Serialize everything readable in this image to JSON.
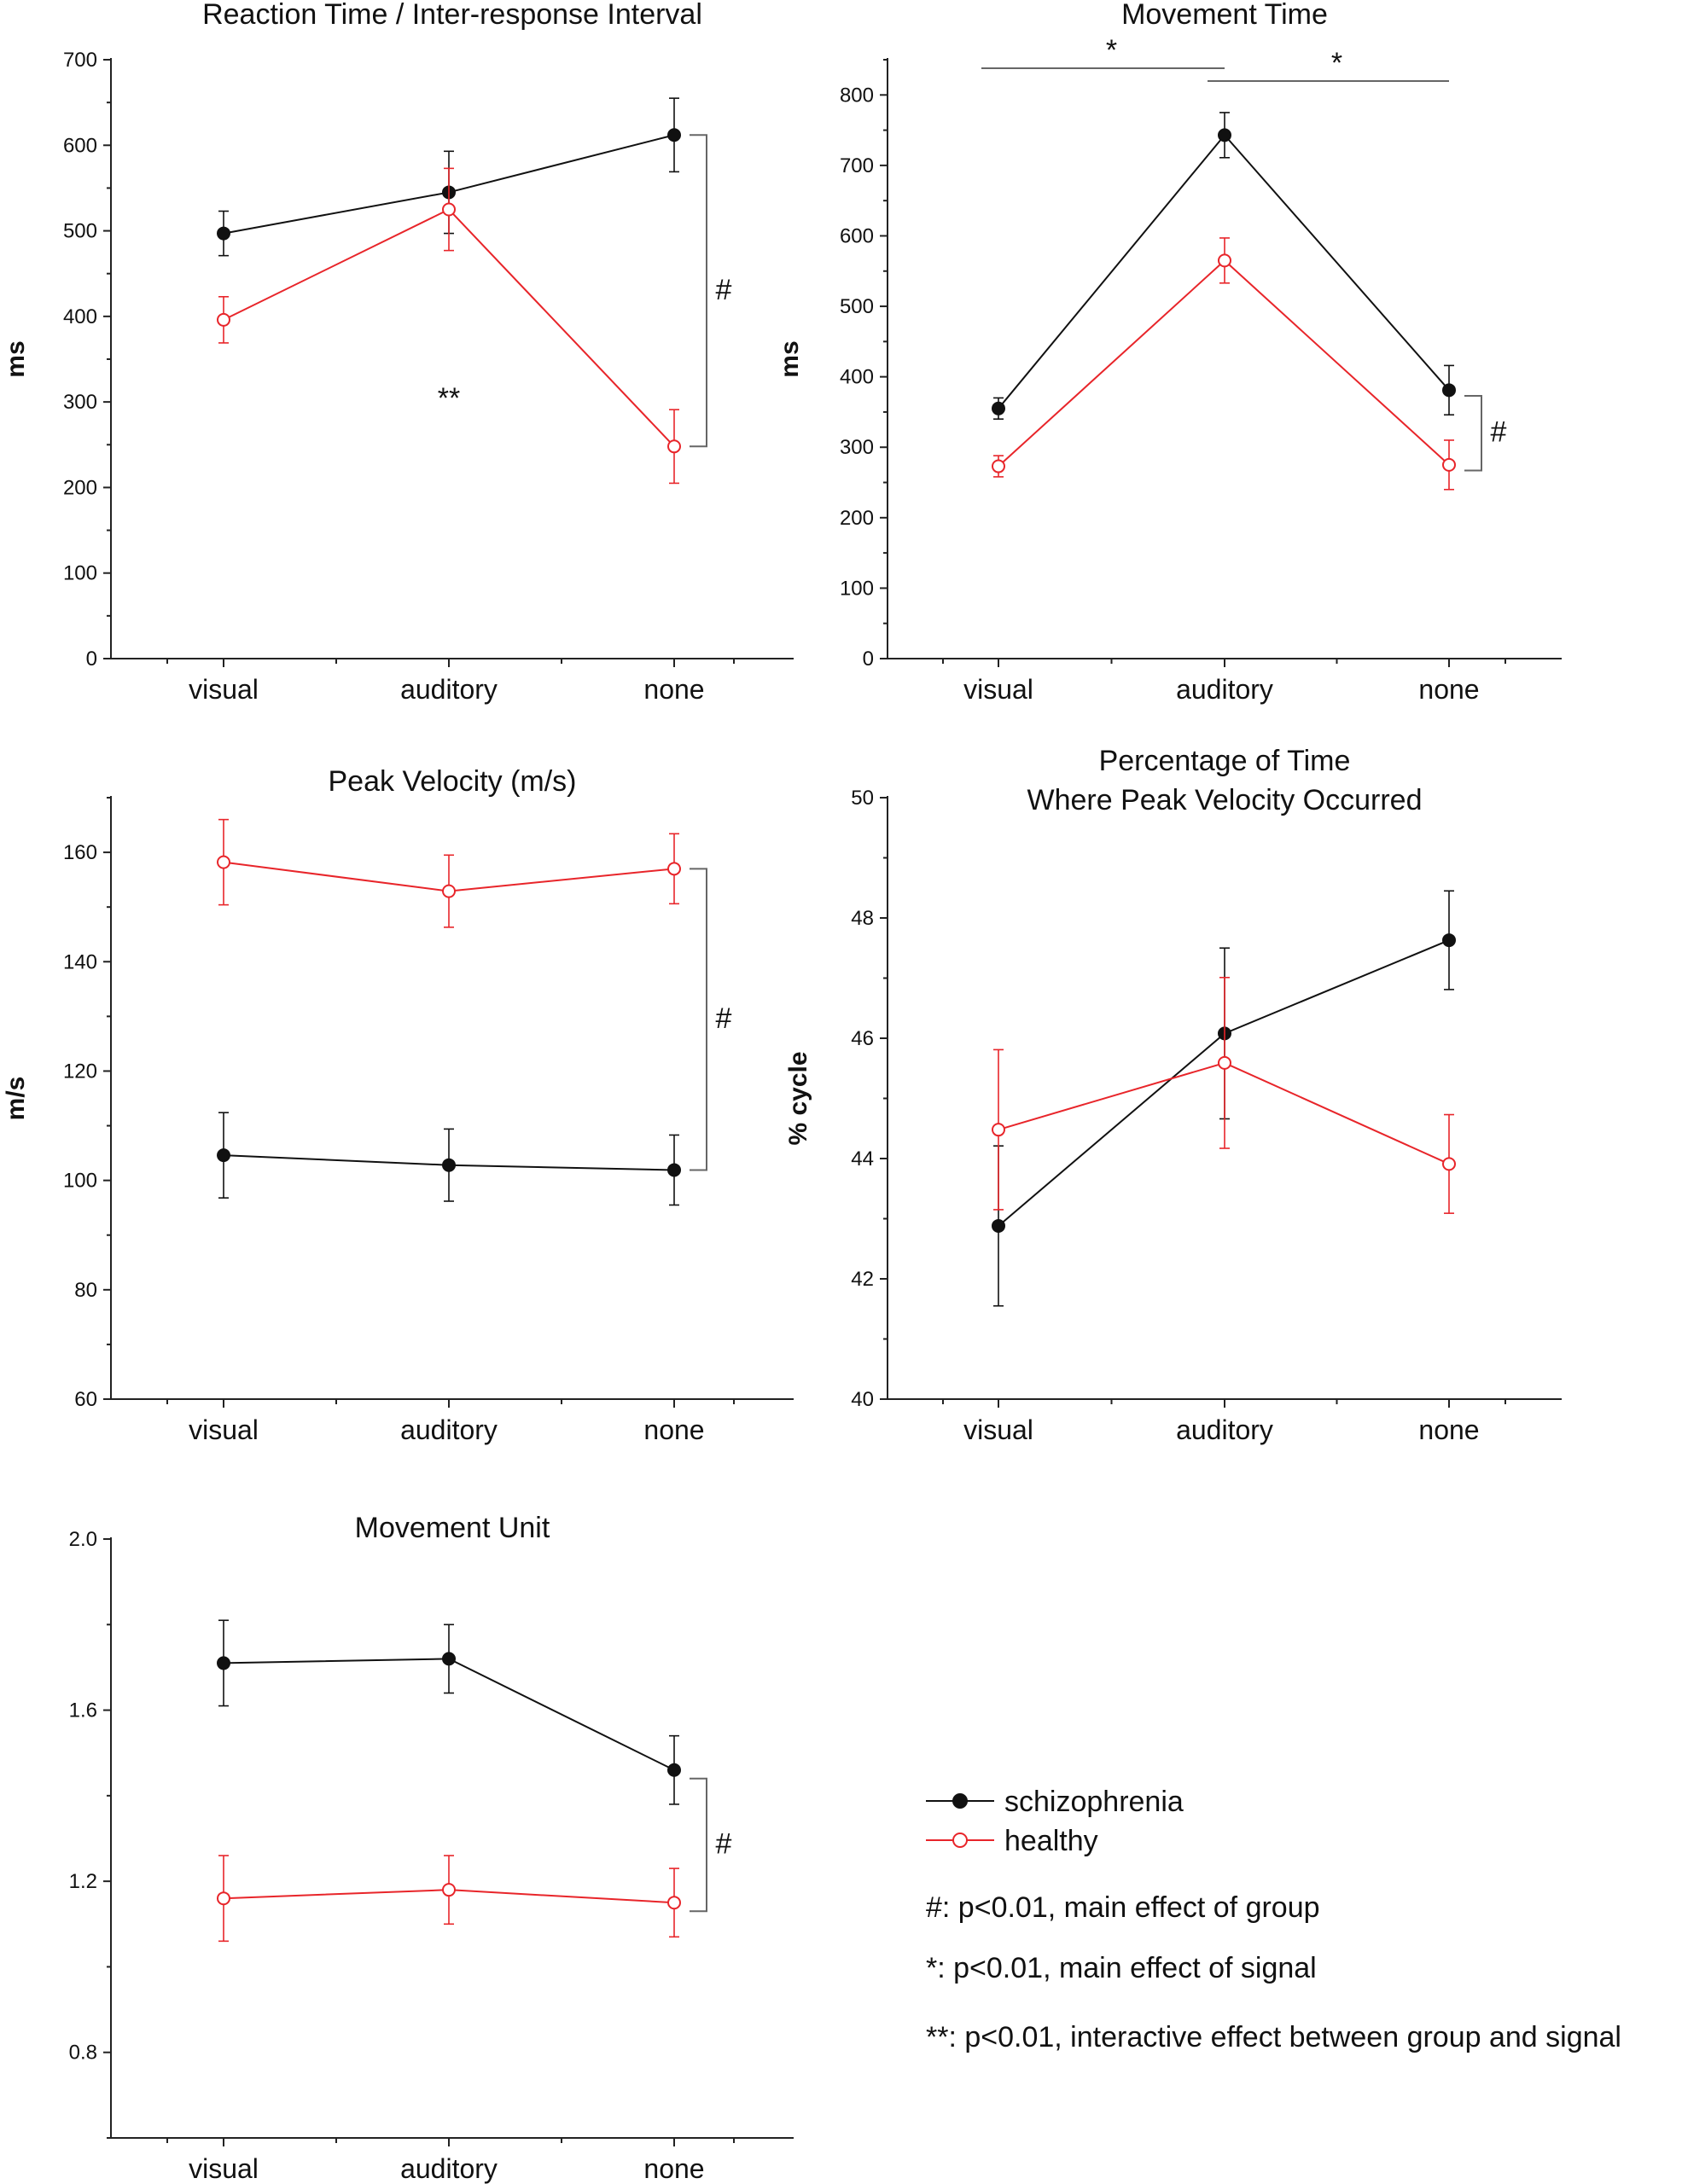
{
  "chart_data": [
    {
      "id": "rt",
      "type": "line",
      "title": "Reaction Time / Inter-response Interval",
      "title_lines": [
        "Reaction Time / Inter-response Interval"
      ],
      "ylabel": "ms",
      "categories": [
        "visual",
        "auditory",
        "none"
      ],
      "ylim": [
        0,
        700
      ],
      "yticks": [
        0,
        100,
        200,
        300,
        400,
        500,
        600,
        700
      ],
      "series": [
        {
          "name": "schizophrenia",
          "values": [
            497,
            545,
            612
          ],
          "err": [
            26,
            48,
            43
          ]
        },
        {
          "name": "healthy",
          "values": [
            396,
            525,
            248
          ],
          "err": [
            27,
            48,
            43
          ]
        }
      ],
      "annotations": [
        {
          "text": "#",
          "kind": "group-bracket",
          "range": [
            248,
            612
          ]
        },
        {
          "text": "**",
          "kind": "label",
          "x_index": 1,
          "y": 305
        }
      ]
    },
    {
      "id": "mt",
      "type": "line",
      "title": "Movement Time",
      "title_lines": [
        "Movement Time"
      ],
      "ylabel": "ms",
      "categories": [
        "visual",
        "auditory",
        "none"
      ],
      "ylim": [
        0,
        850
      ],
      "yticks": [
        0,
        100,
        200,
        300,
        400,
        500,
        600,
        700,
        800
      ],
      "series": [
        {
          "name": "schizophrenia",
          "values": [
            355,
            743,
            381
          ],
          "err": [
            15,
            32,
            35
          ]
        },
        {
          "name": "healthy",
          "values": [
            273,
            565,
            275
          ],
          "err": [
            15,
            32,
            35
          ]
        }
      ],
      "annotations": [
        {
          "text": "#",
          "kind": "group-bracket",
          "range": [
            267,
            373
          ]
        },
        {
          "text": "*",
          "kind": "signal-bracket",
          "from": 0,
          "to": 1
        },
        {
          "text": "*",
          "kind": "signal-bracket",
          "from": 1,
          "to": 2
        }
      ]
    },
    {
      "id": "pv",
      "type": "line",
      "title": "Peak Velocity (m/s)",
      "title_lines": [
        "Peak Velocity (m/s)"
      ],
      "ylabel": "m/s",
      "categories": [
        "visual",
        "auditory",
        "none"
      ],
      "ylim": [
        60,
        170
      ],
      "yticks": [
        60,
        80,
        100,
        120,
        140,
        160
      ],
      "series": [
        {
          "name": "schizophrenia",
          "values": [
            104.6,
            102.8,
            101.9
          ],
          "err": [
            7.8,
            6.6,
            6.4
          ]
        },
        {
          "name": "healthy",
          "values": [
            158.2,
            152.9,
            157.0
          ],
          "err": [
            7.8,
            6.6,
            6.4
          ]
        }
      ],
      "annotations": [
        {
          "text": "#",
          "kind": "group-bracket",
          "range": [
            101.9,
            157.0
          ]
        }
      ]
    },
    {
      "id": "pct",
      "type": "line",
      "title": "Percentage of Time Where Peak Velocity Occurred",
      "title_lines": [
        "Percentage of Time",
        "Where Peak Velocity Occurred"
      ],
      "ylabel": "% cycle",
      "categories": [
        "visual",
        "auditory",
        "none"
      ],
      "ylim": [
        40,
        50
      ],
      "yticks": [
        40,
        42,
        44,
        46,
        48,
        50
      ],
      "series": [
        {
          "name": "schizophrenia",
          "values": [
            42.88,
            46.08,
            47.63
          ],
          "err": [
            1.33,
            1.42,
            0.82
          ]
        },
        {
          "name": "healthy",
          "values": [
            44.48,
            45.59,
            43.91
          ],
          "err": [
            1.33,
            1.42,
            0.82
          ]
        }
      ],
      "annotations": []
    },
    {
      "id": "mu",
      "type": "line",
      "title": "Movement Unit",
      "title_lines": [
        "Movement Unit"
      ],
      "ylabel": "",
      "categories": [
        "visual",
        "auditory",
        "none"
      ],
      "ylim": [
        0.6,
        2.0
      ],
      "yticks": [
        0.8,
        1.2,
        1.6,
        2.0
      ],
      "series": [
        {
          "name": "schizophrenia",
          "values": [
            1.71,
            1.72,
            1.46
          ],
          "err": [
            0.1,
            0.08,
            0.08
          ]
        },
        {
          "name": "healthy",
          "values": [
            1.16,
            1.18,
            1.15
          ],
          "err": [
            0.1,
            0.08,
            0.08
          ]
        }
      ],
      "annotations": [
        {
          "text": "#",
          "kind": "group-bracket",
          "range": [
            1.13,
            1.44
          ]
        }
      ]
    }
  ],
  "legend": {
    "placement": "bottom-right",
    "items": [
      {
        "label": "schizophrenia",
        "color": "#111111",
        "marker": "filled-circle"
      },
      {
        "label": "healthy",
        "color": "#e8252a",
        "marker": "open-circle"
      }
    ]
  },
  "notes": [
    "#: p<0.01, main effect of group",
    "*: p<0.01, main effect of signal",
    "**: p<0.01, interactive effect between group and signal"
  ],
  "colors": {
    "schizophrenia": "#111111",
    "healthy": "#e8252a",
    "axis": "#222222",
    "bracket": "#666666"
  }
}
